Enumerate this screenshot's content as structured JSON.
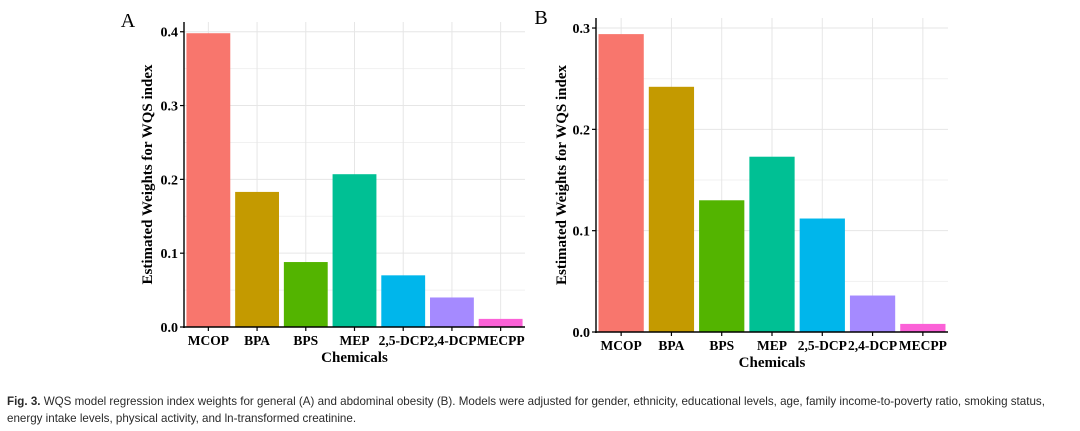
{
  "charts": [
    {
      "panel_label": "A",
      "type": "bar",
      "title": "",
      "xlabel": "Chemicals",
      "ylabel": "Estimated Weights for WQS index",
      "categories": [
        "MCOP",
        "BPA",
        "BPS",
        "MEP",
        "2,5-DCP",
        "2,4-DCP",
        "MECPP"
      ],
      "values": [
        0.398,
        0.183,
        0.088,
        0.207,
        0.07,
        0.04,
        0.011
      ],
      "colors": [
        "#F8766D",
        "#C49A00",
        "#53B400",
        "#00C094",
        "#00B6EB",
        "#A58AFF",
        "#FB61D7"
      ],
      "ylim": [
        0,
        0.4
      ],
      "yticks": [
        0.0,
        0.1,
        0.2,
        0.3,
        0.4
      ],
      "ytick_labels": [
        "0.0",
        "0.1",
        "0.2",
        "0.3",
        "0.4"
      ],
      "grid": true,
      "legend": "none"
    },
    {
      "panel_label": "B",
      "type": "bar",
      "title": "",
      "xlabel": "Chemicals",
      "ylabel": "Estimated Weights for WQS index",
      "categories": [
        "MCOP",
        "BPA",
        "BPS",
        "MEP",
        "2,5-DCP",
        "2,4-DCP",
        "MECPP"
      ],
      "values": [
        0.294,
        0.242,
        0.13,
        0.173,
        0.112,
        0.036,
        0.008
      ],
      "colors": [
        "#F8766D",
        "#C49A00",
        "#53B400",
        "#00C094",
        "#00B6EB",
        "#A58AFF",
        "#FB61D7"
      ],
      "ylim": [
        0,
        0.3
      ],
      "yticks": [
        0.0,
        0.1,
        0.2,
        0.3
      ],
      "ytick_labels": [
        "0.0",
        "0.1",
        "0.2",
        "0.3"
      ],
      "grid": true,
      "legend": "none"
    }
  ],
  "caption": {
    "label": "Fig. 3.",
    "text": " WQS model regression index weights for general (A) and abdominal obesity (B). Models were adjusted for gender, ethnicity, educational levels, age, family income-to-poverty ratio, smoking status, energy intake levels, physical activity, and ln-transformed creatinine."
  }
}
